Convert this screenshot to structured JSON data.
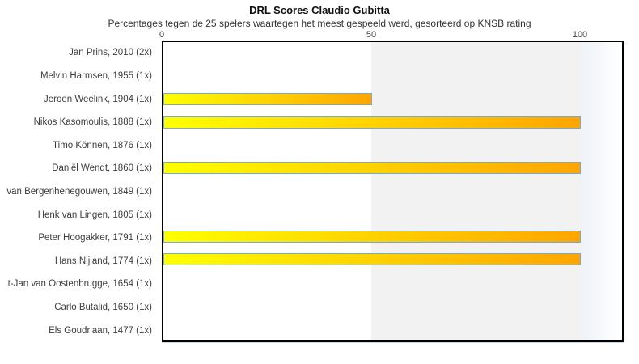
{
  "colors": {
    "bar_gradient_start": "#ffff00",
    "bar_gradient_end": "#ffa500",
    "bar_border": "#74a9d8",
    "band_mid": "#f2f2f2",
    "plot_border": "#000000",
    "axis_accent_underline": "#c4d9ec",
    "background": "#ffffff"
  },
  "chart_data": {
    "type": "bar",
    "orientation": "horizontal",
    "title": "DRL Scores Claudio Gubitta",
    "subtitle": "Percentages tegen de 25 spelers waartegen het meest gespeeld werd, gesorteerd op KNSB rating",
    "xlabel": "",
    "ylabel": "",
    "xlim": [
      0,
      110
    ],
    "xticks": [
      "0",
      "50",
      "100"
    ],
    "grid": false,
    "legend": false,
    "shaded_band_x": [
      50,
      100
    ],
    "categories": [
      "Jan Prins, 2010 (2x)",
      "Melvin Harmsen, 1955 (1x)",
      "Jeroen Weelink, 1904 (1x)",
      "Nikos Kasomoulis, 1888 (1x)",
      "Timo Können, 1876 (1x)",
      "Daniël Wendt, 1860 (1x)",
      "van Bergenhenegouwen, 1849 (1x)",
      "Henk van Lingen, 1805 (1x)",
      "Peter Hoogakker, 1791 (1x)",
      "Hans Nijland, 1774 (1x)",
      "t-Jan van Oostenbrugge, 1654 (1x)",
      "Carlo Butalid, 1650 (1x)",
      "Els Goudriaan, 1477 (1x)"
    ],
    "values": [
      0,
      0,
      50,
      100,
      0,
      100,
      0,
      0,
      100,
      100,
      0,
      0,
      0
    ]
  }
}
